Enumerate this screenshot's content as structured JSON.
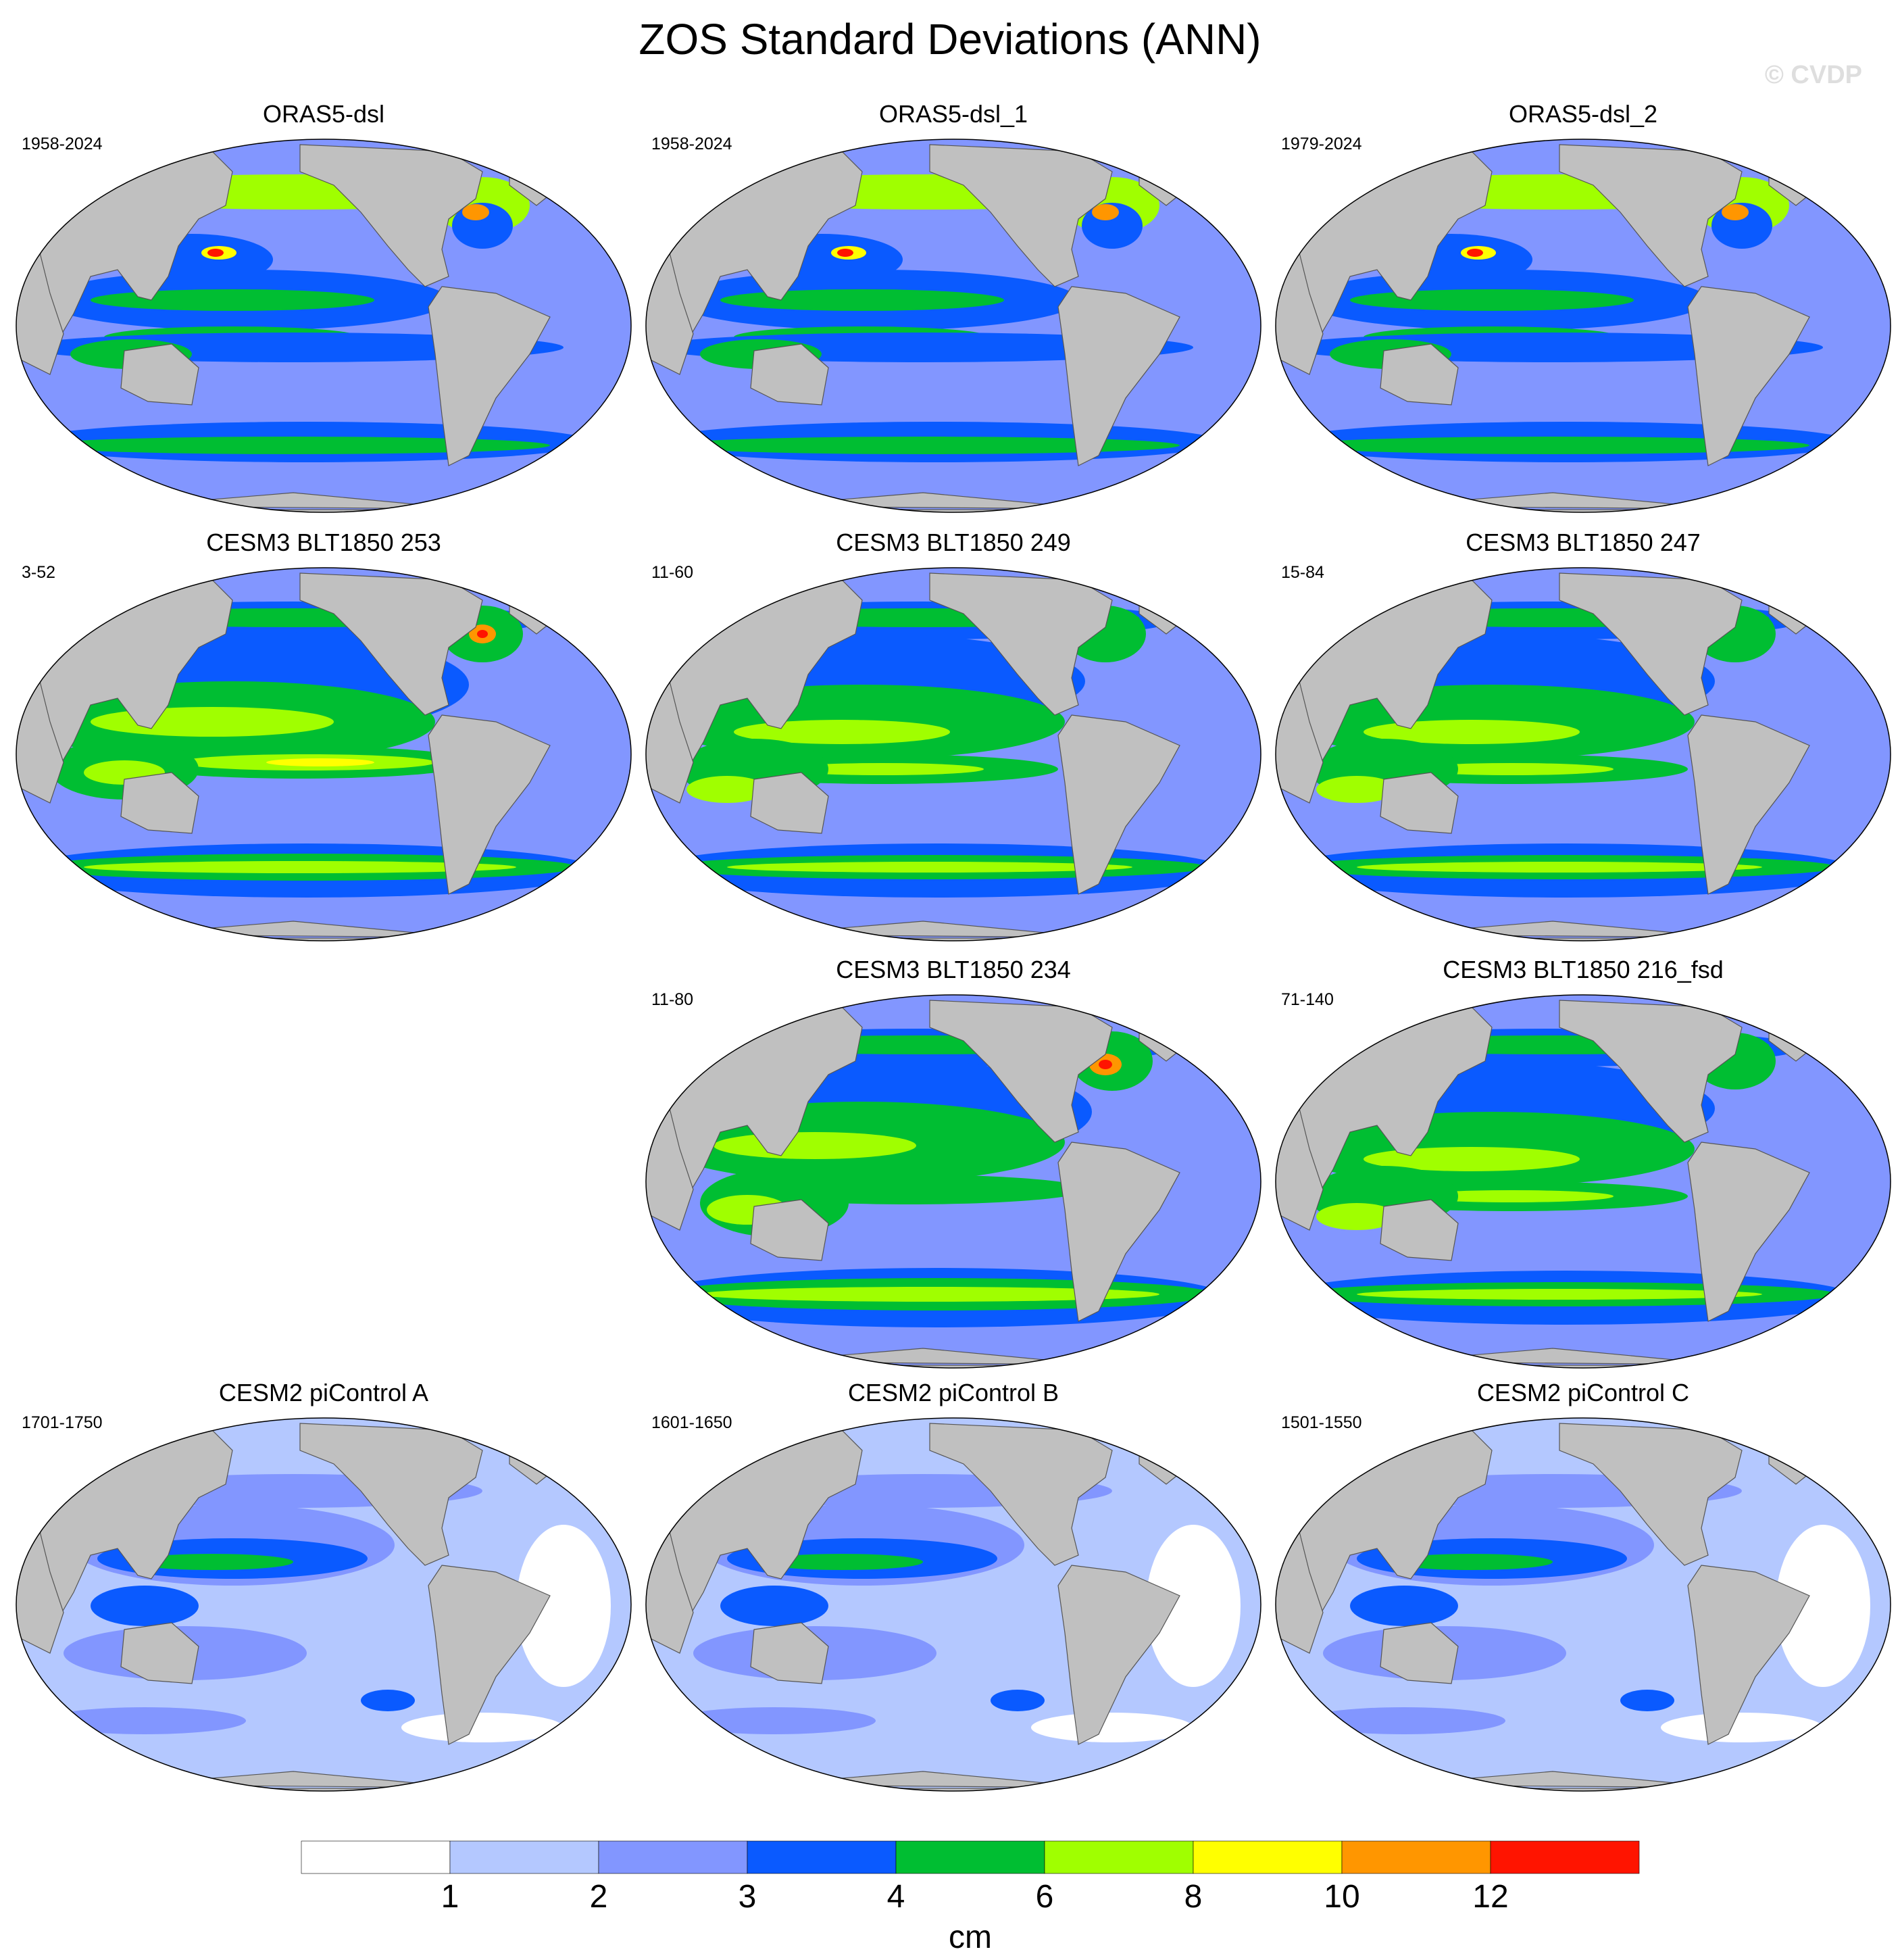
{
  "title": "ZOS Standard Deviations (ANN)",
  "watermark": "© CVDP",
  "colors": {
    "land": "#c0c0c0",
    "coast": "#555555",
    "levels": [
      "#ffffff",
      "#b4c8ff",
      "#8296ff",
      "#0a5aff",
      "#00be32",
      "#a0ff00",
      "#ffff00",
      "#ff9600",
      "#ff1400"
    ]
  },
  "panels": [
    {
      "title": "ORAS5-dsl",
      "years": "1958-2024",
      "style": "oras"
    },
    {
      "title": "ORAS5-dsl_1",
      "years": "1958-2024",
      "style": "oras"
    },
    {
      "title": "ORAS5-dsl_2",
      "years": "1979-2024",
      "style": "oras"
    },
    {
      "title": "CESM3 BLT1850 253",
      "years": "3-52",
      "style": "cesm3-strong"
    },
    {
      "title": "CESM3 BLT1850 249",
      "years": "11-60",
      "style": "cesm3"
    },
    {
      "title": "CESM3 BLT1850 247",
      "years": "15-84",
      "style": "cesm3"
    },
    {
      "title": "CESM3 BLT1850 234",
      "years": "11-80",
      "style": "cesm3-hot"
    },
    {
      "title": "CESM3 BLT1850 216_fsd",
      "years": "71-140",
      "style": "cesm3"
    },
    {
      "title": "CESM2 piControl A",
      "years": "1701-1750",
      "style": "cesm2"
    },
    {
      "title": "CESM2 piControl B",
      "years": "1601-1650",
      "style": "cesm2"
    },
    {
      "title": "CESM2 piControl C",
      "years": "1501-1550",
      "style": "cesm2"
    }
  ],
  "colorbar": {
    "ticks": [
      "1",
      "2",
      "3",
      "4",
      "6",
      "8",
      "10",
      "12"
    ],
    "units": "cm"
  },
  "chart_data": {
    "type": "heatmap",
    "title": "ZOS Standard Deviations (ANN)",
    "projection": "global map, Pacific-centered",
    "units": "cm",
    "contour_levels": [
      1,
      2,
      3,
      4,
      6,
      8,
      10,
      12
    ],
    "panels": [
      {
        "name": "ORAS5-dsl",
        "years": "1958-2024"
      },
      {
        "name": "ORAS5-dsl_1",
        "years": "1958-2024"
      },
      {
        "name": "ORAS5-dsl_2",
        "years": "1979-2024"
      },
      {
        "name": "CESM3 BLT1850 253",
        "years": "3-52"
      },
      {
        "name": "CESM3 BLT1850 249",
        "years": "11-60"
      },
      {
        "name": "CESM3 BLT1850 247",
        "years": "15-84"
      },
      {
        "name": "CESM3 BLT1850 234",
        "years": "11-80"
      },
      {
        "name": "CESM3 BLT1850 216_fsd",
        "years": "71-140"
      },
      {
        "name": "CESM2 piControl A",
        "years": "1701-1750"
      },
      {
        "name": "CESM2 piControl B",
        "years": "1601-1650"
      },
      {
        "name": "CESM2 piControl C",
        "years": "1501-1550"
      }
    ]
  }
}
